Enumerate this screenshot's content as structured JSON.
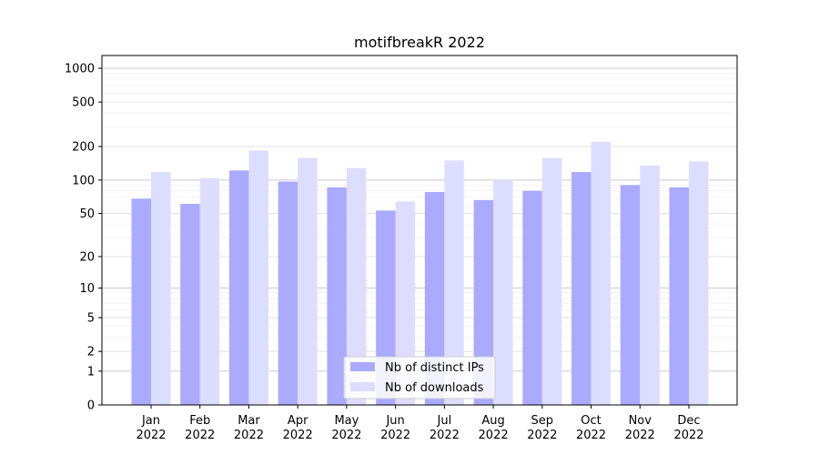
{
  "chart_data": {
    "type": "bar",
    "title": "motifbreakR 2022",
    "xlabel": "",
    "ylabel": "",
    "yscale": "log(1+y)",
    "ylim": [
      0,
      1300
    ],
    "yticks": [
      0,
      1,
      2,
      5,
      10,
      20,
      50,
      100,
      200,
      500,
      1000
    ],
    "categories": [
      {
        "month": "Jan",
        "year": "2022"
      },
      {
        "month": "Feb",
        "year": "2022"
      },
      {
        "month": "Mar",
        "year": "2022"
      },
      {
        "month": "Apr",
        "year": "2022"
      },
      {
        "month": "May",
        "year": "2022"
      },
      {
        "month": "Jun",
        "year": "2022"
      },
      {
        "month": "Jul",
        "year": "2022"
      },
      {
        "month": "Aug",
        "year": "2022"
      },
      {
        "month": "Sep",
        "year": "2022"
      },
      {
        "month": "Oct",
        "year": "2022"
      },
      {
        "month": "Nov",
        "year": "2022"
      },
      {
        "month": "Dec",
        "year": "2022"
      }
    ],
    "series": [
      {
        "name": "Nb of distinct IPs",
        "color": "#aaaaff",
        "values": [
          68,
          61,
          122,
          97,
          86,
          53,
          78,
          66,
          80,
          118,
          90,
          86
        ]
      },
      {
        "name": "Nb of downloads",
        "color": "#ddddff",
        "values": [
          118,
          104,
          184,
          158,
          128,
          64,
          150,
          100,
          158,
          220,
          135,
          147
        ]
      }
    ],
    "grid": true,
    "legend_position": "lower-center"
  }
}
